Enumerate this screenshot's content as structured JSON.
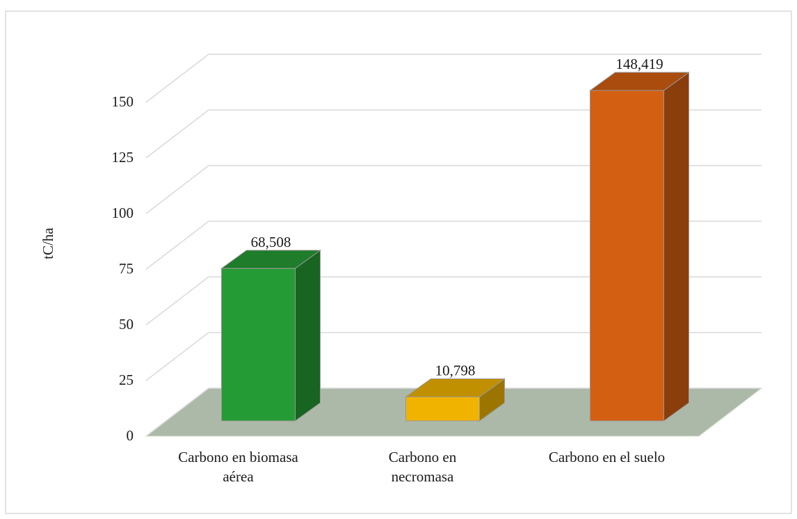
{
  "chart_data": {
    "type": "bar3d",
    "y_label": "tC/ha",
    "categories": [
      "Carbono en biomasa aérea",
      "Carbono en necromasa",
      "Carbono en el suelo"
    ],
    "values": [
      68.508,
      10.798,
      148.419
    ],
    "value_labels": [
      "68,508",
      "10,798",
      "148,419"
    ],
    "colors": [
      "#259b35",
      "#f0b400",
      "#d35f12"
    ],
    "ylim": [
      0,
      150
    ],
    "yticks": [
      0,
      25,
      50,
      75,
      100,
      125,
      150
    ],
    "grid": true
  }
}
